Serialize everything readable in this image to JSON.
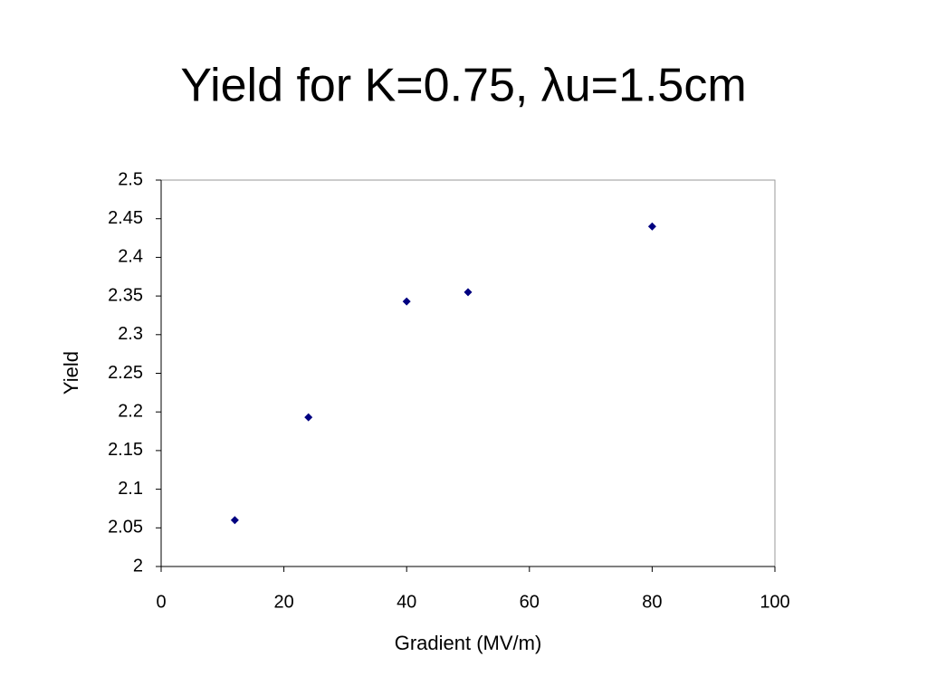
{
  "chart_data": {
    "type": "scatter",
    "title": "Yield for K=0.75, λu=1.5cm",
    "x_label": "Gradient (MV/m)",
    "y_label": "Yield",
    "x": [
      12,
      24,
      40,
      50,
      80
    ],
    "values": [
      2.06,
      2.193,
      2.343,
      2.355,
      2.44
    ],
    "color": "#000080",
    "xlim": [
      0,
      100
    ],
    "xticks": [
      0,
      20,
      40,
      60,
      80,
      100
    ],
    "ylim": [
      2,
      2.5
    ],
    "yticks": [
      2,
      2.05,
      2.1,
      2.15,
      2.2,
      2.25,
      2.3,
      2.35,
      2.4,
      2.45,
      2.5
    ],
    "grid": false
  }
}
